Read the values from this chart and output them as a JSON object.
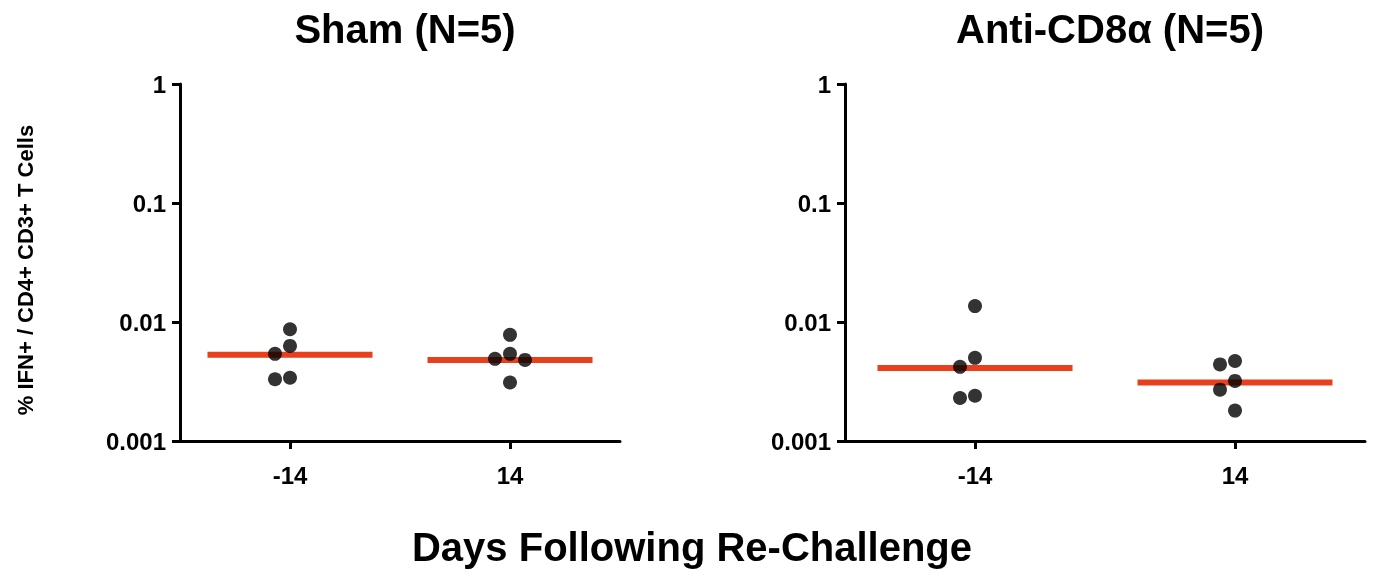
{
  "chart_data": [
    {
      "type": "scatter",
      "title": "Sham (N=5)",
      "ylabel": "% IFN+ / CD4+ CD3+ T Cells",
      "xlabel": "Days Following Re-Challenge",
      "categories": [
        "-14",
        "14"
      ],
      "log": true,
      "ylim": [
        0.001,
        1
      ],
      "yticks": [
        0.001,
        0.01,
        0.1,
        1
      ],
      "grid": false,
      "series": [
        {
          "color": "#000000",
          "marker": "circle",
          "x": [
            "-14",
            "-14",
            "-14",
            "-14",
            "-14",
            "14",
            "14",
            "14",
            "14",
            "14"
          ],
          "values": [
            0.0087,
            0.0063,
            0.0054,
            0.0034,
            0.0033,
            0.0078,
            0.0054,
            0.0049,
            0.0048,
            0.0031
          ]
        },
        {
          "type": "box",
          "color": "#e8401c",
          "boxes": [
            {
              "low": 0.0053,
              "q1": 0.0053,
              "median": 0.0053,
              "q3": 0.0053,
              "high": 0.0053
            },
            {
              "low": 0.0048,
              "q1": 0.0048,
              "median": 0.0048,
              "q3": 0.0048,
              "high": 0.0048
            }
          ]
        }
      ]
    },
    {
      "type": "scatter",
      "title": "Anti-CD8α (N=5)",
      "categories": [
        "-14",
        "14"
      ],
      "log": true,
      "ylim": [
        0.001,
        1
      ],
      "yticks": [
        0.001,
        0.01,
        0.1,
        1
      ],
      "grid": false,
      "series": [
        {
          "color": "#000000",
          "marker": "circle",
          "x": [
            "-14",
            "-14",
            "-14",
            "-14",
            "-14",
            "14",
            "14",
            "14",
            "14",
            "14"
          ],
          "values": [
            0.0136,
            0.005,
            0.0042,
            0.0024,
            0.0023,
            0.0047,
            0.0044,
            0.0032,
            0.0027,
            0.0018
          ]
        },
        {
          "type": "box",
          "color": "#e8401c",
          "boxes": [
            {
              "low": 0.0041,
              "q1": 0.0041,
              "median": 0.0041,
              "q3": 0.0041,
              "high": 0.0041
            },
            {
              "low": 0.0031,
              "q1": 0.0031,
              "median": 0.0031,
              "q3": 0.0031,
              "high": 0.0031
            }
          ]
        }
      ]
    }
  ]
}
